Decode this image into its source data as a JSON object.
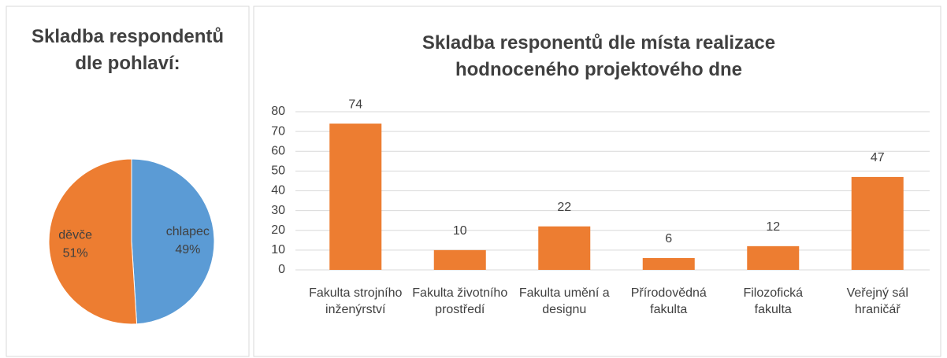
{
  "chart_data": [
    {
      "type": "pie",
      "title": "Skladba respondentů dle pohlaví:",
      "categories": [
        "chlapec",
        "děvče"
      ],
      "values": [
        49,
        51
      ],
      "value_labels": [
        "49%",
        "51%"
      ],
      "colors": [
        "#5b9bd5",
        "#ed7d31"
      ]
    },
    {
      "type": "bar",
      "title": "Skladba responentů dle místa realizace hodnoceného projektového dne",
      "categories": [
        "Fakulta strojního inženýrství",
        "Fakulta životního prostředí",
        "Fakulta umění a designu",
        "Přírodovědná fakulta",
        "Filozofická fakulta",
        "Veřejný sál hraničář"
      ],
      "values": [
        74,
        10,
        22,
        6,
        12,
        47
      ],
      "color": "#ed7d31",
      "ylim": [
        0,
        80
      ],
      "yticks": [
        0,
        10,
        20,
        30,
        40,
        50,
        60,
        70,
        80
      ],
      "grid": true
    }
  ]
}
